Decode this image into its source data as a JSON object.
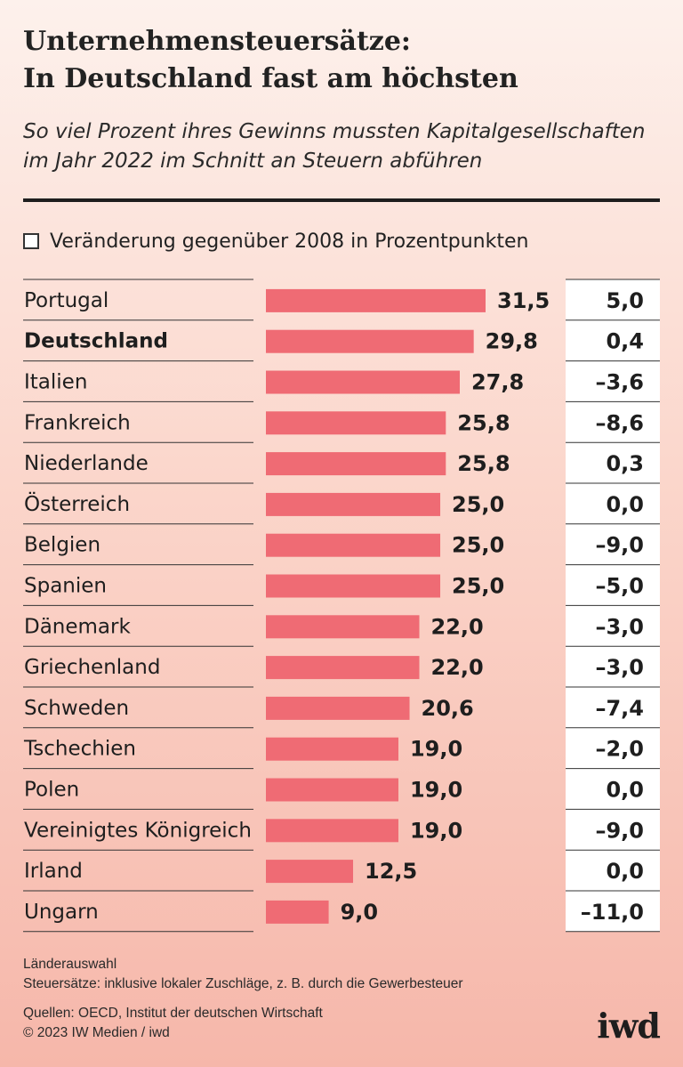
{
  "header": {
    "title_line1": "Unternehmensteuersätze:",
    "title_line2": "In Deutschland fast am höchsten",
    "subtitle_line1": "So viel Prozent ihres Gewinns mussten Kapitalgesellschaften",
    "subtitle_line2": "im Jahr 2022 im Schnitt an Steuern abführen"
  },
  "legend": {
    "label": "Veränderung gegenüber 2008 in Prozentpunkten"
  },
  "chart_data": {
    "type": "bar",
    "orientation": "horizontal",
    "title": "Unternehmensteuersätze: In Deutschland fast am höchsten",
    "subtitle": "So viel Prozent ihres Gewinns mussten Kapitalgesellschaften im Jahr 2022 im Schnitt an Steuern abführen",
    "categories": [
      "Portugal",
      "Deutschland",
      "Italien",
      "Frankreich",
      "Niederlande",
      "Österreich",
      "Belgien",
      "Spanien",
      "Dänemark",
      "Griechenland",
      "Schweden",
      "Tschechien",
      "Polen",
      "Vereinigtes Königreich",
      "Irland",
      "Ungarn"
    ],
    "values": [
      31.5,
      29.8,
      27.8,
      25.8,
      25.8,
      25.0,
      25.0,
      25.0,
      22.0,
      22.0,
      20.6,
      19.0,
      19.0,
      19.0,
      12.5,
      9.0
    ],
    "value_labels": [
      "31,5",
      "29,8",
      "27,8",
      "25,8",
      "25,8",
      "25,0",
      "25,0",
      "25,0",
      "22,0",
      "22,0",
      "20,6",
      "19,0",
      "19,0",
      "19,0",
      "12,5",
      "9,0"
    ],
    "change_since_2008": [
      5.0,
      0.4,
      -3.6,
      -8.6,
      0.3,
      0.0,
      -9.0,
      -5.0,
      -3.0,
      -3.0,
      -7.4,
      -2.0,
      0.0,
      -9.0,
      0.0,
      -11.0
    ],
    "change_labels": [
      "5,0",
      "0,4",
      "–3,6",
      "–8,6",
      "0,3",
      "0,0",
      "–9,0",
      "–5,0",
      "–3,0",
      "–3,0",
      "–7,4",
      "–2,0",
      "0,0",
      "–9,0",
      "0,0",
      "–11,0"
    ],
    "highlight": "Deutschland",
    "xlim": [
      0,
      40
    ],
    "bar_color": "#ef6b74",
    "xlabel": "",
    "ylabel": ""
  },
  "notes": {
    "line1": "Länderauswahl",
    "line2": "Steuersätze: inklusive lokaler Zuschläge, z. B. durch die Gewerbesteuer"
  },
  "source": {
    "line1": "Quellen: OECD, Institut der deutschen Wirtschaft",
    "line2": "© 2023 IW Medien / iwd"
  },
  "logo": {
    "text": "iwd"
  }
}
